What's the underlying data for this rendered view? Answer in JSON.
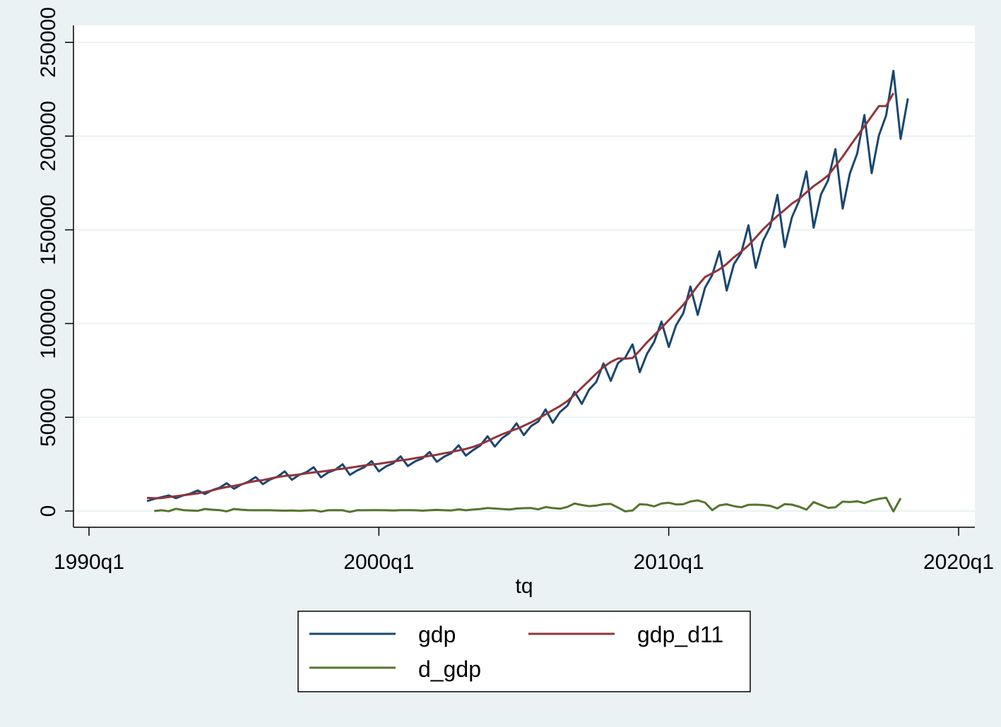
{
  "chart_data": {
    "type": "line",
    "xlabel": "tq",
    "ylabel": "",
    "xlim": [
      1990.0,
      2020.0
    ],
    "ylim": [
      0,
      250000
    ],
    "x_ticks": [
      {
        "value": 1990,
        "label": "1990q1"
      },
      {
        "value": 2000,
        "label": "2000q1"
      },
      {
        "value": 2010,
        "label": "2010q1"
      },
      {
        "value": 2020,
        "label": "2020q1"
      }
    ],
    "y_ticks": [
      {
        "value": 0,
        "label": "0"
      },
      {
        "value": 50000,
        "label": "50000"
      },
      {
        "value": 100000,
        "label": "100000"
      },
      {
        "value": 150000,
        "label": "150000"
      },
      {
        "value": 200000,
        "label": "200000"
      },
      {
        "value": 250000,
        "label": "250000"
      }
    ],
    "grid": true,
    "legend": {
      "position": "bottom-center",
      "columns": 2
    },
    "x_start": 1992.0,
    "x_step": 0.25,
    "series": [
      {
        "name": "gdp",
        "color": "#1a476f",
        "start_index": 0,
        "values": [
          5262,
          6484,
          7337,
          8313,
          6834,
          8357,
          9315,
          10974,
          9064,
          11132,
          12399,
          14817,
          11884,
          14087,
          15654,
          18104,
          14343,
          16839,
          18296,
          21155,
          16683,
          19274,
          20713,
          23349,
          17995,
          20542,
          22015,
          24922,
          19278,
          21656,
          23381,
          26625,
          21133,
          23882,
          25522,
          29150,
          23965,
          26489,
          28050,
          31487,
          26236,
          28996,
          30841,
          35049,
          29561,
          32478,
          34973,
          39857,
          34378,
          38842,
          41617,
          46757,
          40484,
          45307,
          47748,
          54228,
          47078,
          52873,
          56133,
          63577,
          57159,
          64696,
          68863,
          78738,
          69410,
          78987,
          81864,
          88880,
          74053,
          83830,
          90264,
          101068,
          87501,
          98940,
          105495,
          119749,
          104641,
          119096,
          125916,
          138514,
          117593,
          131699,
          137736,
          152391,
          129747,
          143968,
          151713,
          168622,
          140759,
          156757,
          165556,
          181132,
          151138,
          168804,
          176468,
          193016,
          161367,
          180129,
          190663,
          211234,
          180219,
          200358,
          211018,
          234780,
          198536,
          220062
        ],
        "label_key": "legend.items.0"
      },
      {
        "name": "gdp_d11",
        "color": "#90353b",
        "start_index": 0,
        "values": [
          7000,
          6800,
          6900,
          7400,
          7900,
          8400,
          8900,
          9400,
          10100,
          11000,
          12000,
          12800,
          13400,
          14200,
          15300,
          16000,
          16500,
          17300,
          18100,
          18700,
          19000,
          19500,
          20100,
          20600,
          21000,
          21500,
          22100,
          22600,
          23100,
          23700,
          24300,
          24800,
          25200,
          25800,
          26400,
          27000,
          27500,
          28200,
          28800,
          29400,
          30000,
          30800,
          31500,
          32300,
          33100,
          34200,
          35600,
          37300,
          39200,
          40900,
          42400,
          43800,
          45500,
          47300,
          49300,
          51600,
          53800,
          56000,
          58600,
          62000,
          65800,
          69500,
          73300,
          76800,
          79500,
          81400,
          81200,
          81600,
          85600,
          90000,
          93800,
          97700,
          101800,
          105800,
          110000,
          114900,
          120200,
          124800,
          126800,
          128900,
          131800,
          135400,
          138400,
          141700,
          145900,
          150200,
          153900,
          157400,
          160600,
          164000,
          166500,
          170000,
          173300,
          176000,
          179000,
          184000,
          189000,
          194600,
          200000,
          205200,
          210600,
          216000,
          216000,
          222900
        ],
        "label_key": "legend.items.1"
      },
      {
        "name": "d_gdp",
        "color": "#55752f",
        "start_index": 1,
        "values": [
          0,
          400,
          -100,
          1200,
          500,
          300,
          100,
          1100,
          700,
          500,
          -200,
          1100,
          700,
          500,
          400,
          400,
          400,
          300,
          200,
          300,
          100,
          300,
          400,
          -300,
          400,
          500,
          400,
          -500,
          400,
          400,
          500,
          500,
          400,
          300,
          500,
          500,
          400,
          200,
          400,
          600,
          400,
          300,
          900,
          400,
          800,
          1100,
          1600,
          1300,
          1100,
          800,
          1300,
          1500,
          1600,
          900,
          2100,
          1600,
          1200,
          2200,
          4000,
          3200,
          2600,
          2900,
          3600,
          3800,
          1800,
          -200,
          300,
          3600,
          3400,
          2500,
          4000,
          4400,
          3500,
          3600,
          5100,
          5700,
          4500,
          500,
          3000,
          3600,
          2600,
          2000,
          3300,
          3400,
          3200,
          2800,
          1400,
          3700,
          3400,
          2300,
          700,
          4800,
          3200,
          1700,
          2000,
          5000,
          4800,
          5200,
          4200,
          5600,
          6500,
          7100,
          -200,
          6800
        ],
        "label_key": "legend.items.2"
      }
    ]
  },
  "legend": {
    "items": [
      "gdp",
      "gdp_d11",
      "d_gdp"
    ]
  }
}
